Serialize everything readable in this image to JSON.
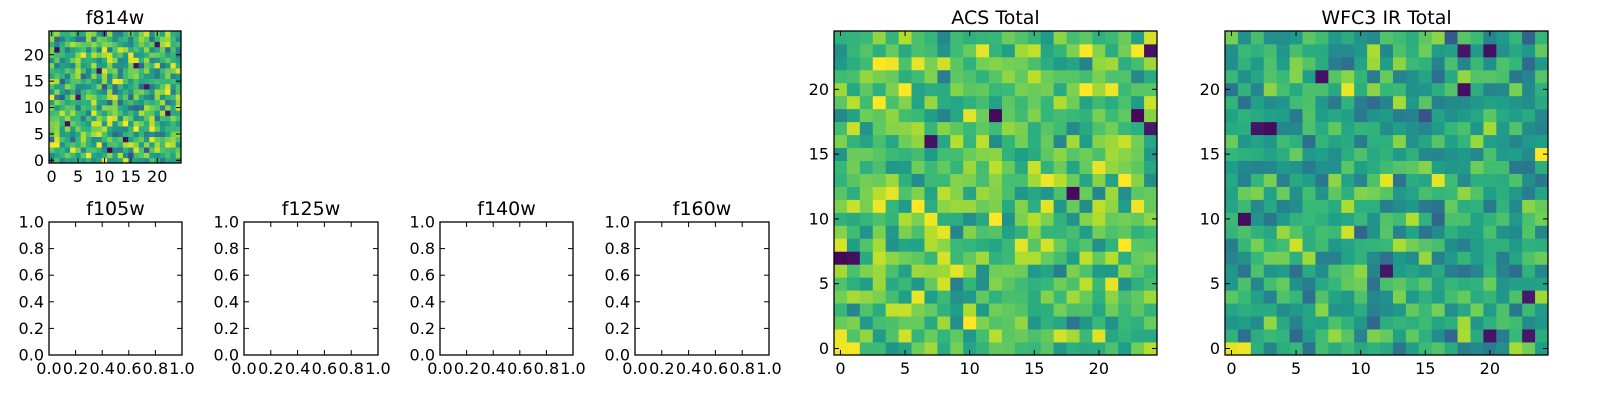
{
  "chart_data": [
    {
      "type": "heatmap",
      "title": "f814w",
      "grid_size": [
        25,
        25
      ],
      "colormap": "viridis",
      "xlim": [
        -0.5,
        24.5
      ],
      "ylim": [
        -0.5,
        24.5
      ],
      "xticks": [
        0,
        5,
        10,
        15,
        20
      ],
      "yticks": [
        0,
        5,
        10,
        15,
        20
      ],
      "seed": 11,
      "mean": 0.66,
      "spread": 0.2,
      "dark_cells": [
        [
          3,
          7
        ],
        [
          5,
          12
        ],
        [
          14,
          4
        ],
        [
          16,
          18
        ],
        [
          20,
          22
        ],
        [
          9,
          17
        ],
        [
          22,
          9
        ],
        [
          1,
          21
        ],
        [
          11,
          2
        ],
        [
          18,
          14
        ]
      ],
      "bright_cells": [
        [
          0,
          3
        ],
        [
          6,
          20
        ],
        [
          12,
          15
        ],
        [
          19,
          6
        ],
        [
          8,
          9
        ],
        [
          23,
          18
        ]
      ]
    },
    {
      "type": "empty",
      "title": "f105w",
      "xlim": [
        0,
        1
      ],
      "ylim": [
        0,
        1
      ],
      "xticks": [
        "0.0",
        "0.2",
        "0.4",
        "0.6",
        "0.8",
        "1.0"
      ],
      "yticks": [
        "0.0",
        "0.2",
        "0.4",
        "0.6",
        "0.8",
        "1.0"
      ]
    },
    {
      "type": "empty",
      "title": "f125w",
      "xlim": [
        0,
        1
      ],
      "ylim": [
        0,
        1
      ],
      "xticks": [
        "0.0",
        "0.2",
        "0.4",
        "0.6",
        "0.8",
        "1.0"
      ],
      "yticks": [
        "0.0",
        "0.2",
        "0.4",
        "0.6",
        "0.8",
        "1.0"
      ]
    },
    {
      "type": "empty",
      "title": "f140w",
      "xlim": [
        0,
        1
      ],
      "ylim": [
        0,
        1
      ],
      "xticks": [
        "0.0",
        "0.2",
        "0.4",
        "0.6",
        "0.8",
        "1.0"
      ],
      "yticks": [
        "0.0",
        "0.2",
        "0.4",
        "0.6",
        "0.8",
        "1.0"
      ]
    },
    {
      "type": "empty",
      "title": "f160w",
      "xlim": [
        0,
        1
      ],
      "ylim": [
        0,
        1
      ],
      "xticks": [
        "0.0",
        "0.2",
        "0.4",
        "0.6",
        "0.8",
        "1.0"
      ],
      "yticks": [
        "0.0",
        "0.2",
        "0.4",
        "0.6",
        "0.8",
        "1.0"
      ]
    },
    {
      "type": "heatmap",
      "title": "ACS Total",
      "grid_size": [
        25,
        25
      ],
      "colormap": "viridis",
      "xlim": [
        -0.5,
        24.5
      ],
      "ylim": [
        -0.5,
        24.5
      ],
      "xticks": [
        0,
        5,
        10,
        15,
        20
      ],
      "yticks": [
        0,
        5,
        10,
        15,
        20
      ],
      "seed": 23,
      "mean": 0.72,
      "spread": 0.16,
      "dark_cells": [
        [
          24,
          23
        ],
        [
          7,
          16
        ],
        [
          12,
          18
        ],
        [
          18,
          12
        ],
        [
          0,
          7
        ],
        [
          1,
          7
        ],
        [
          24,
          17
        ],
        [
          23,
          18
        ]
      ],
      "bright_cells": [
        [
          0,
          0
        ],
        [
          1,
          0
        ],
        [
          0,
          1
        ],
        [
          3,
          11
        ],
        [
          5,
          20
        ],
        [
          21,
          5
        ],
        [
          16,
          13
        ]
      ]
    },
    {
      "type": "heatmap",
      "title": "WFC3 IR Total",
      "grid_size": [
        25,
        25
      ],
      "colormap": "viridis",
      "xlim": [
        -0.5,
        24.5
      ],
      "ylim": [
        -0.5,
        24.5
      ],
      "xticks": [
        0,
        5,
        10,
        15,
        20
      ],
      "yticks": [
        0,
        5,
        10,
        15,
        20
      ],
      "seed": 37,
      "mean": 0.6,
      "spread": 0.16,
      "dark_cells": [
        [
          18,
          23
        ],
        [
          20,
          23
        ],
        [
          2,
          17
        ],
        [
          3,
          17
        ],
        [
          1,
          10
        ],
        [
          12,
          6
        ],
        [
          23,
          4
        ],
        [
          20,
          1
        ],
        [
          18,
          20
        ],
        [
          7,
          21
        ],
        [
          23,
          1
        ]
      ],
      "bright_cells": [
        [
          0,
          0
        ],
        [
          1,
          0
        ],
        [
          24,
          15
        ],
        [
          12,
          13
        ],
        [
          9,
          20
        ],
        [
          16,
          13
        ]
      ]
    }
  ]
}
